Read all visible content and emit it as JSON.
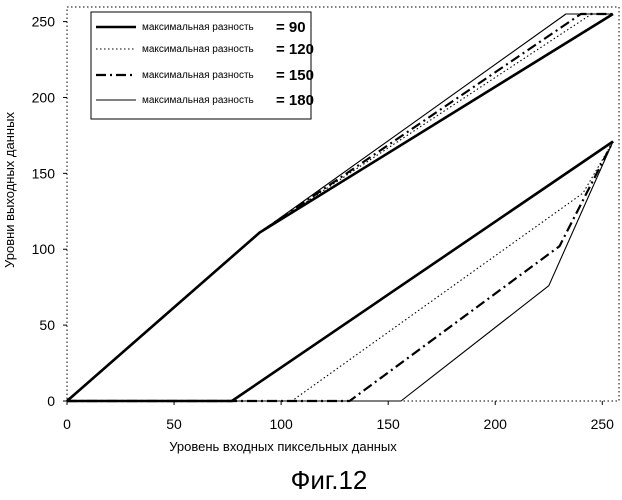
{
  "chart_data": {
    "type": "line",
    "xlabel": "Уровень входных пиксельных данных",
    "ylabel": "Уровни выходных данных",
    "caption": "Фиг.12",
    "xlim": [
      0,
      255
    ],
    "ylim": [
      0,
      255
    ],
    "xticks": [
      0,
      50,
      100,
      150,
      200,
      250
    ],
    "yticks": [
      0,
      50,
      100,
      150,
      200,
      250
    ],
    "grid": false,
    "legend_position": "top-left",
    "series": [
      {
        "name": "максимальная разность",
        "legend_value": "= 90",
        "style": "thick-solid",
        "segments": [
          [
            [
              0,
              0
            ],
            [
              90,
              111
            ],
            [
              255,
              255
            ]
          ],
          [
            [
              0,
              0
            ],
            [
              77,
              0
            ],
            [
              255,
              171
            ]
          ]
        ]
      },
      {
        "name": "максимальная разность",
        "legend_value": "= 120",
        "style": "dotted",
        "segments": [
          [
            [
              0,
              0
            ],
            [
              90,
              111
            ],
            [
              245,
              255
            ]
          ],
          [
            [
              0,
              0
            ],
            [
              105,
              0
            ],
            [
              241,
              137
            ],
            [
              255,
              171
            ]
          ]
        ]
      },
      {
        "name": "максимальная разность",
        "legend_value": "= 150",
        "style": "dash-dot",
        "segments": [
          [
            [
              0,
              0
            ],
            [
              90,
              111
            ],
            [
              240,
              255
            ],
            [
              255,
              255
            ]
          ],
          [
            [
              0,
              0
            ],
            [
              132,
              0
            ],
            [
              230,
              102
            ],
            [
              255,
              171
            ]
          ]
        ]
      },
      {
        "name": "максимальная разность",
        "legend_value": "= 180",
        "style": "thin-solid",
        "segments": [
          [
            [
              0,
              0
            ],
            [
              90,
              111
            ],
            [
              233,
              255
            ],
            [
              255,
              255
            ]
          ],
          [
            [
              0,
              0
            ],
            [
              156,
              0
            ],
            [
              225,
              76
            ],
            [
              255,
              171
            ]
          ]
        ]
      }
    ]
  }
}
